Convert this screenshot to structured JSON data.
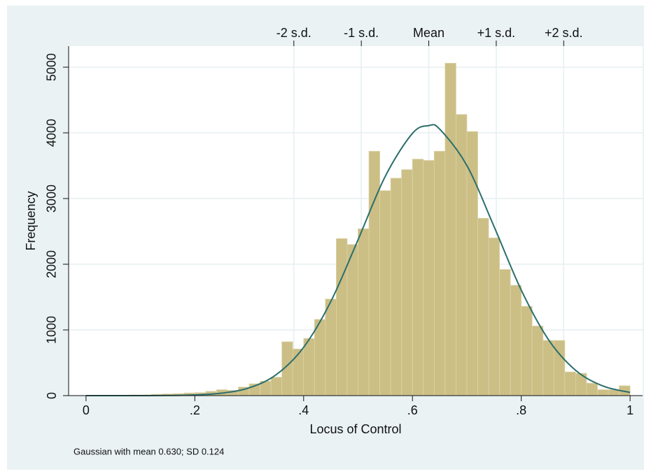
{
  "chart_data": {
    "type": "histogram",
    "x_label": "Locus of Control",
    "y_label": "Frequency",
    "note": "Gaussian with mean 0.630; SD 0.124",
    "bins": [
      0,
      0.02,
      0.04,
      0.06,
      0.08,
      0.1,
      0.12,
      0.14,
      0.16,
      0.18,
      0.2,
      0.22,
      0.24,
      0.26,
      0.28,
      0.3,
      0.32,
      0.34,
      0.36,
      0.38,
      0.4,
      0.42,
      0.44,
      0.46,
      0.48,
      0.5,
      0.52,
      0.54,
      0.56,
      0.58,
      0.6,
      0.62,
      0.64,
      0.66,
      0.68,
      0.7,
      0.72,
      0.74,
      0.76,
      0.78,
      0.8,
      0.82,
      0.84,
      0.86,
      0.88,
      0.9,
      0.92,
      0.94,
      0.96,
      0.98,
      1
    ],
    "values": [
      5,
      5,
      5,
      5,
      10,
      10,
      20,
      25,
      30,
      40,
      45,
      65,
      90,
      80,
      130,
      180,
      220,
      280,
      820,
      710,
      870,
      1160,
      1470,
      2390,
      2300,
      2540,
      3720,
      3120,
      3310,
      3440,
      3600,
      3580,
      3720,
      5060,
      4280,
      4020,
      2700,
      2400,
      1920,
      1680,
      1360,
      1060,
      840,
      840,
      360,
      340,
      190,
      90,
      90,
      150
    ],
    "color": "#cbbf86",
    "curve": {
      "color": "#2b6e6c",
      "x": [
        0,
        0.05,
        0.1,
        0.15,
        0.2,
        0.25,
        0.3,
        0.35,
        0.4,
        0.45,
        0.5,
        0.55,
        0.6,
        0.63,
        0.65,
        0.7,
        0.75,
        0.8,
        0.85,
        0.9,
        0.95,
        1
      ],
      "values": [
        0,
        0.07,
        0.4,
        2,
        10,
        38,
        119,
        321,
        736,
        1433,
        2373,
        3338,
        3992,
        4110,
        4057,
        3503,
        2573,
        1606,
        852,
        384,
        147,
        48
      ]
    },
    "xlim": [
      -0.032,
      1.023
    ],
    "ylim": [
      0,
      5320
    ],
    "xticks": [
      0,
      {
        "value": 0.2,
        "label": ".2"
      },
      {
        "value": 0.4,
        "label": ".4"
      },
      {
        "value": 0.6,
        "label": ".6"
      },
      {
        "value": 0.8,
        "label": ".8"
      },
      1
    ],
    "yticks": [
      0,
      1000,
      2000,
      3000,
      4000,
      5000
    ],
    "x2ticks": [
      {
        "value": 0.382,
        "label": "-2 s.d."
      },
      {
        "value": 0.506,
        "label": "-1 s.d."
      },
      {
        "value": 0.63,
        "label": "Mean"
      },
      {
        "value": 0.754,
        "label": "+1 s.d."
      },
      {
        "value": 0.878,
        "label": "+2 s.d."
      }
    ],
    "grid": true
  }
}
